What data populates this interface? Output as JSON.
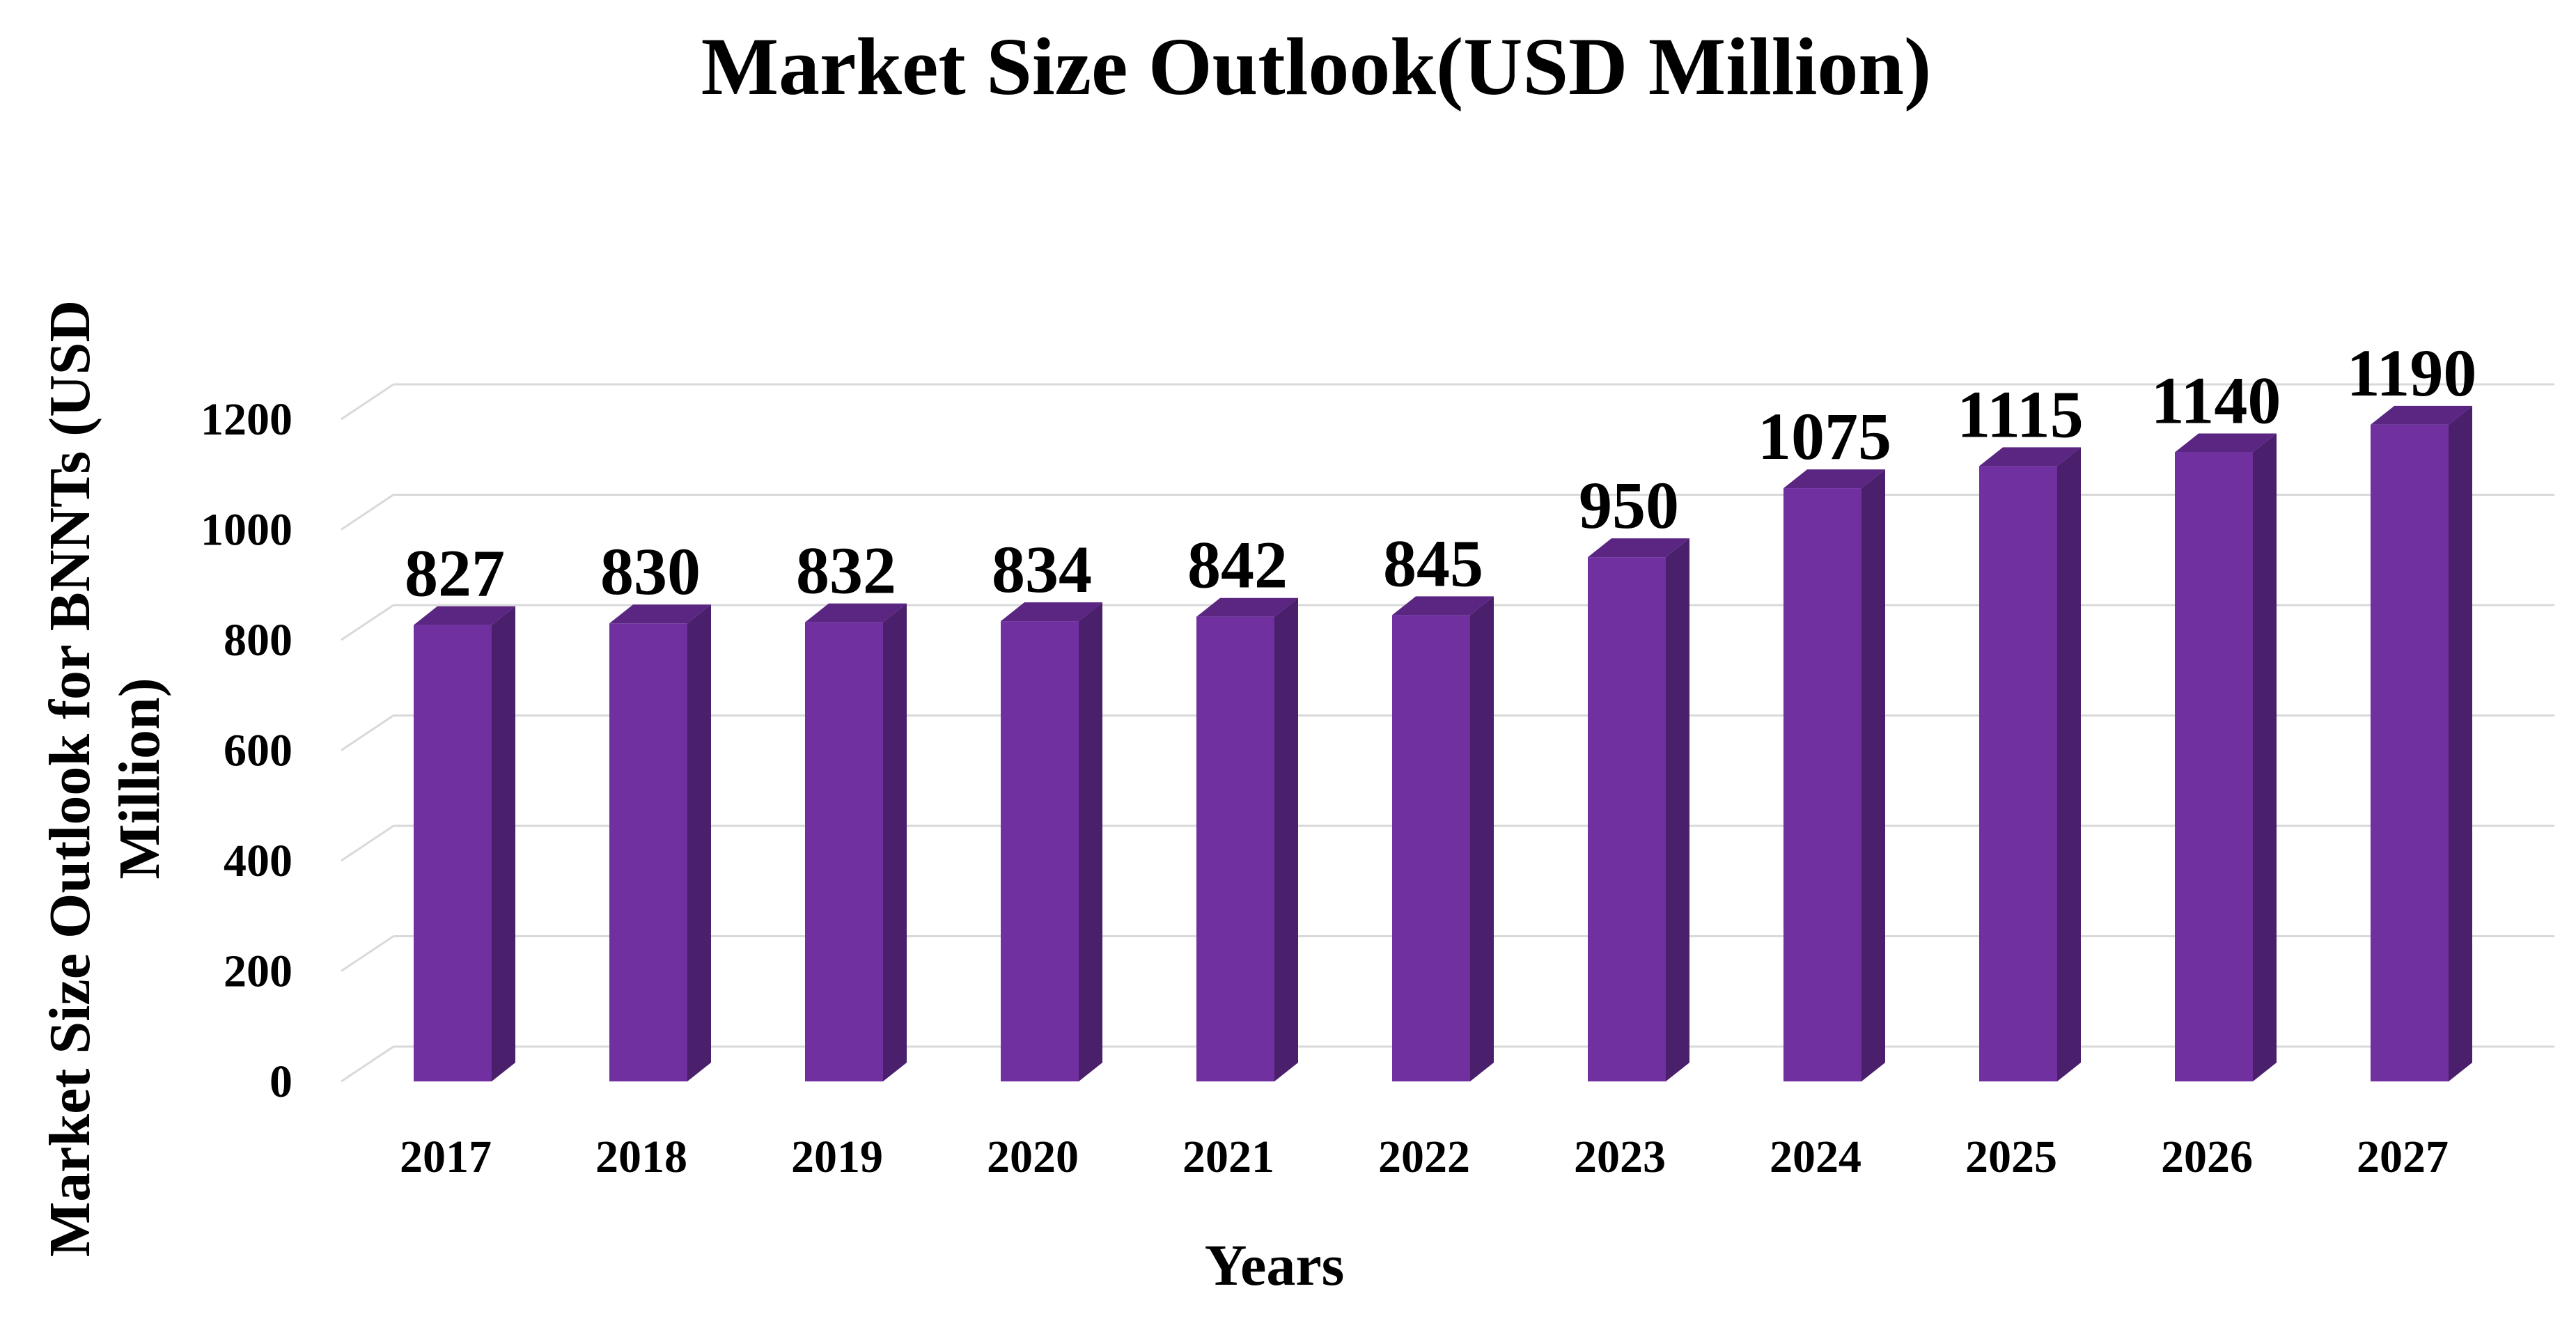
{
  "colors": {
    "bar_front": "#7030A0",
    "bar_side": "#4A1F6B",
    "bar_top": "#5A2682",
    "grid": "#D9D9D9",
    "text": "#000000"
  },
  "chart_data": {
    "type": "bar",
    "title": "Market Size Outlook(USD Million)",
    "xlabel": "Years",
    "ylabel_lines": [
      "Market Size Outlook for BNNTs (USD",
      "Million)"
    ],
    "categories": [
      "2017",
      "2018",
      "2019",
      "2020",
      "2021",
      "2022",
      "2023",
      "2024",
      "2025",
      "2026",
      "2027"
    ],
    "values": [
      827,
      830,
      832,
      834,
      842,
      845,
      950,
      1075,
      1115,
      1140,
      1190
    ],
    "data_labels": [
      "827",
      "830",
      "832",
      "834",
      "842",
      "845",
      "950",
      "1075",
      "1115",
      "1140",
      "1190"
    ],
    "y_ticks": [
      "0",
      "200",
      "400",
      "600",
      "800",
      "1000",
      "1200"
    ],
    "ylim": [
      0,
      1200
    ],
    "grid": true,
    "legend": "none"
  }
}
